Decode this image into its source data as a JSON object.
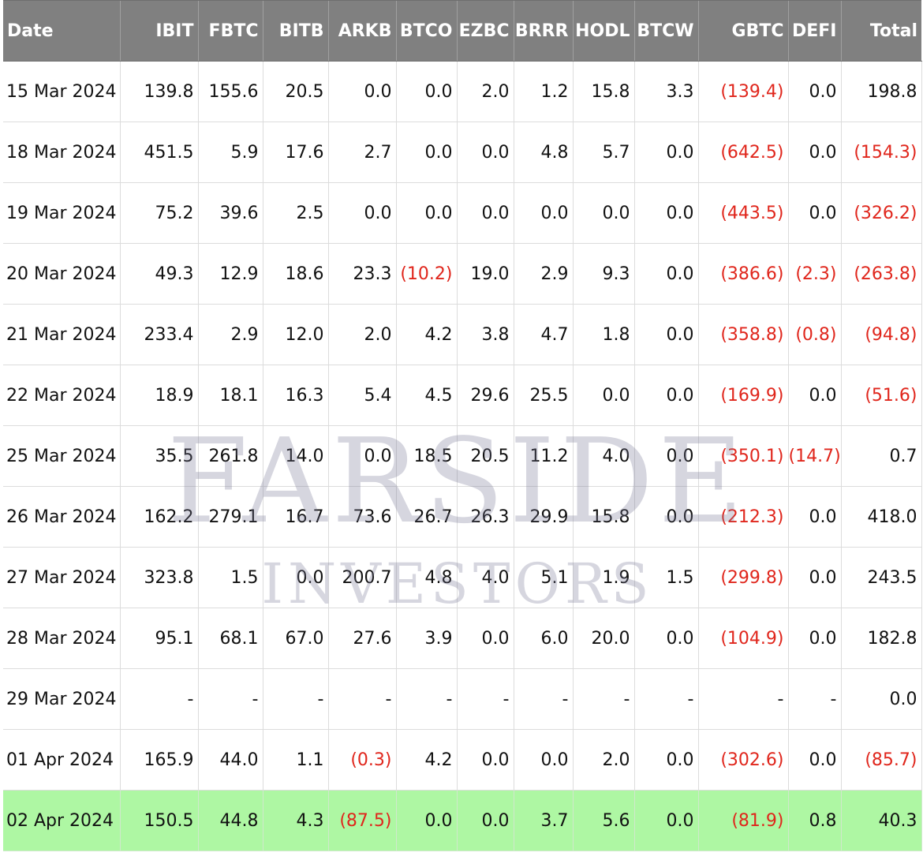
{
  "columns": [
    "Date",
    "IBIT",
    "FBTC",
    "BITB",
    "ARKB",
    "BTCO",
    "EZBC",
    "BRRR",
    "HODL",
    "BTCW",
    "GBTC",
    "DEFI",
    "Total"
  ],
  "rows": [
    [
      "15 Mar 2024",
      "139.8",
      "155.6",
      "20.5",
      "0.0",
      "0.0",
      "2.0",
      "1.2",
      "15.8",
      "3.3",
      "(139.4)",
      "0.0",
      "198.8"
    ],
    [
      "18 Mar 2024",
      "451.5",
      "5.9",
      "17.6",
      "2.7",
      "0.0",
      "0.0",
      "4.8",
      "5.7",
      "0.0",
      "(642.5)",
      "0.0",
      "(154.3)"
    ],
    [
      "19 Mar 2024",
      "75.2",
      "39.6",
      "2.5",
      "0.0",
      "0.0",
      "0.0",
      "0.0",
      "0.0",
      "0.0",
      "(443.5)",
      "0.0",
      "(326.2)"
    ],
    [
      "20 Mar 2024",
      "49.3",
      "12.9",
      "18.6",
      "23.3",
      "(10.2)",
      "19.0",
      "2.9",
      "9.3",
      "0.0",
      "(386.6)",
      "(2.3)",
      "(263.8)"
    ],
    [
      "21 Mar 2024",
      "233.4",
      "2.9",
      "12.0",
      "2.0",
      "4.2",
      "3.8",
      "4.7",
      "1.8",
      "0.0",
      "(358.8)",
      "(0.8)",
      "(94.8)"
    ],
    [
      "22 Mar 2024",
      "18.9",
      "18.1",
      "16.3",
      "5.4",
      "4.5",
      "29.6",
      "25.5",
      "0.0",
      "0.0",
      "(169.9)",
      "0.0",
      "(51.6)"
    ],
    [
      "25 Mar 2024",
      "35.5",
      "261.8",
      "14.0",
      "0.0",
      "18.5",
      "20.5",
      "11.2",
      "4.0",
      "0.0",
      "(350.1)",
      "(14.7)",
      "0.7"
    ],
    [
      "26 Mar 2024",
      "162.2",
      "279.1",
      "16.7",
      "73.6",
      "26.7",
      "26.3",
      "29.9",
      "15.8",
      "0.0",
      "(212.3)",
      "0.0",
      "418.0"
    ],
    [
      "27 Mar 2024",
      "323.8",
      "1.5",
      "0.0",
      "200.7",
      "4.8",
      "4.0",
      "5.1",
      "1.9",
      "1.5",
      "(299.8)",
      "0.0",
      "243.5"
    ],
    [
      "28 Mar 2024",
      "95.1",
      "68.1",
      "67.0",
      "27.6",
      "3.9",
      "0.0",
      "6.0",
      "20.0",
      "0.0",
      "(104.9)",
      "0.0",
      "182.8"
    ],
    [
      "29 Mar 2024",
      "-",
      "-",
      "-",
      "-",
      "-",
      "-",
      "-",
      "-",
      "-",
      "-",
      "-",
      "0.0"
    ],
    [
      "01 Apr 2024",
      "165.9",
      "44.0",
      "1.1",
      "(0.3)",
      "4.2",
      "0.0",
      "0.0",
      "2.0",
      "0.0",
      "(302.6)",
      "0.0",
      "(85.7)"
    ],
    [
      "02 Apr 2024",
      "150.5",
      "44.8",
      "4.3",
      "(87.5)",
      "0.0",
      "0.0",
      "3.7",
      "5.6",
      "0.0",
      "(81.9)",
      "0.8",
      "40.3"
    ]
  ],
  "highlighted_row": 12,
  "watermark": {
    "line1": "FARSIDE",
    "line2": "INVESTORS"
  },
  "colors": {
    "header_bg": "#808080",
    "header_text": "#ffffff",
    "negative_text": "#e0261c",
    "highlight_bg": "#aef7a3",
    "grid": "#dcdcdc"
  }
}
